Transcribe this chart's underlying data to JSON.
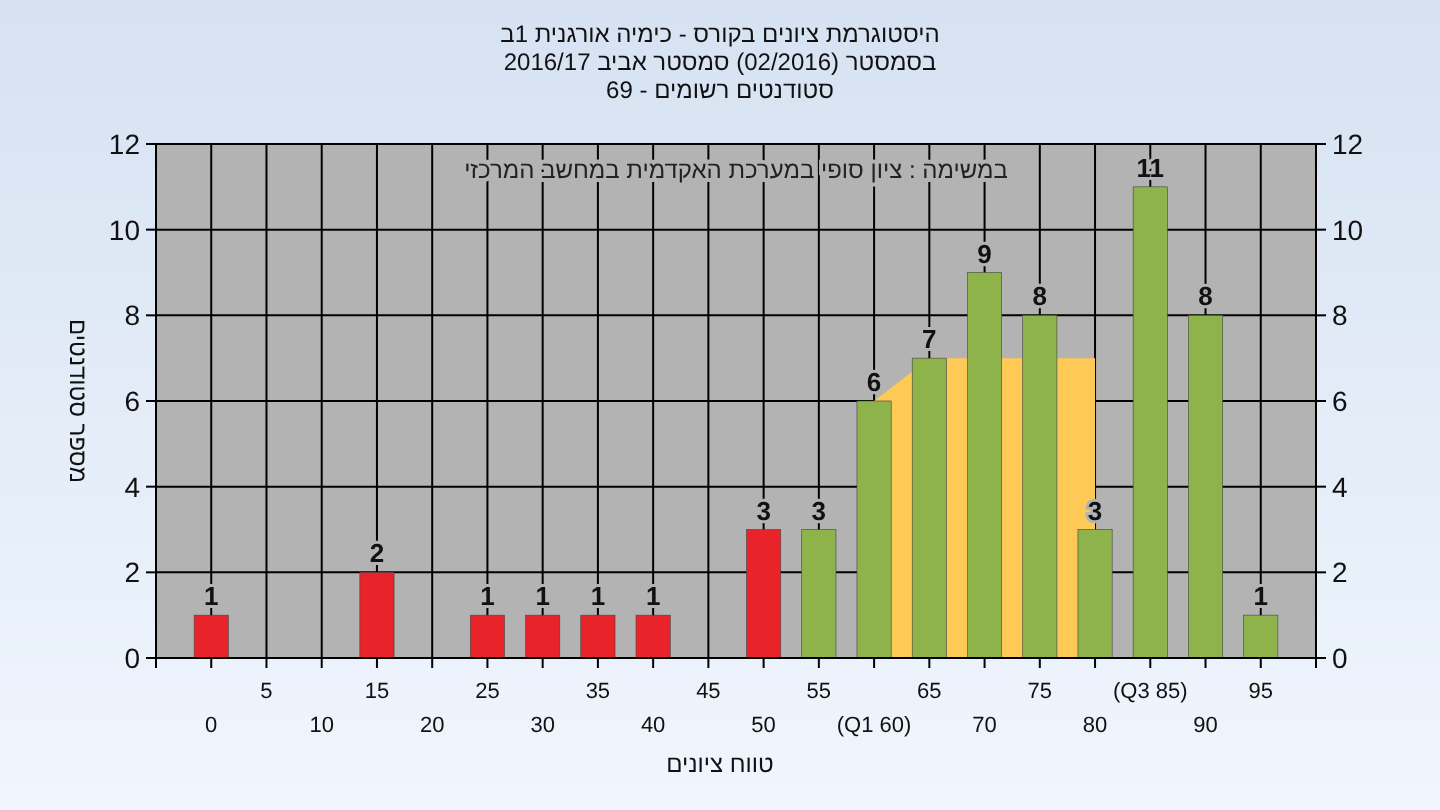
{
  "chart_data": {
    "type": "bar",
    "title": "היסטוגרמת ציונים בקורס - כימיה אורגנית 1ב",
    "subtitle": "בסמסטר  (02/2016)  סמסטר אביב 2016/17\nסטודנטים רשומים - 69",
    "xlabel": "טווח ציונים",
    "ylabel": "מספר סטודנטים",
    "annotations": [
      "במשימה : ציון סופי במערכת האקדמית במחשב המרכזי"
    ],
    "categories": [
      "0",
      "5",
      "10",
      "15",
      "20",
      "25",
      "30",
      "35",
      "40",
      "45",
      "50",
      "55",
      "(Q1 60)",
      "65",
      "70",
      "75",
      "80",
      "(Q3 85)",
      "90",
      "95"
    ],
    "series": [
      {
        "type": "area",
        "color": "#ffc955",
        "values": [
          null,
          null,
          null,
          null,
          null,
          null,
          null,
          null,
          null,
          null,
          null,
          null,
          6,
          7,
          null,
          null,
          7,
          null,
          null,
          null
        ]
      },
      {
        "colors": [
          "#e8242a",
          "#e8242a",
          "#e8242a",
          "#e8242a",
          "#e8242a",
          "#e8242a",
          "#e8242a",
          "#e8242a",
          "#e8242a",
          "#e8242a",
          "#e8242a",
          "#8db34a",
          "#8db34a",
          "#8db34a",
          "#8db34a",
          "#8db34a",
          "#8db34a",
          "#8db34a",
          "#8db34a",
          "#8db34a"
        ],
        "values": [
          1,
          0,
          0,
          2,
          0,
          1,
          1,
          1,
          1,
          0,
          3,
          3,
          6,
          7,
          9,
          8,
          3,
          11,
          8,
          1
        ],
        "value_labels": [
          "1",
          null,
          null,
          "2",
          null,
          "1",
          "1",
          "1",
          "1",
          null,
          "3",
          "3",
          "6",
          "7",
          "9",
          "8",
          "3",
          "11",
          "8",
          "1"
        ]
      }
    ],
    "ylim": [
      0,
      12
    ],
    "yticks": [
      0,
      2,
      4,
      6,
      8,
      10,
      12
    ],
    "y2lim": [
      0,
      12
    ],
    "y2ticks": [
      0,
      2,
      4,
      6,
      8,
      10,
      12
    ],
    "grid": true
  }
}
